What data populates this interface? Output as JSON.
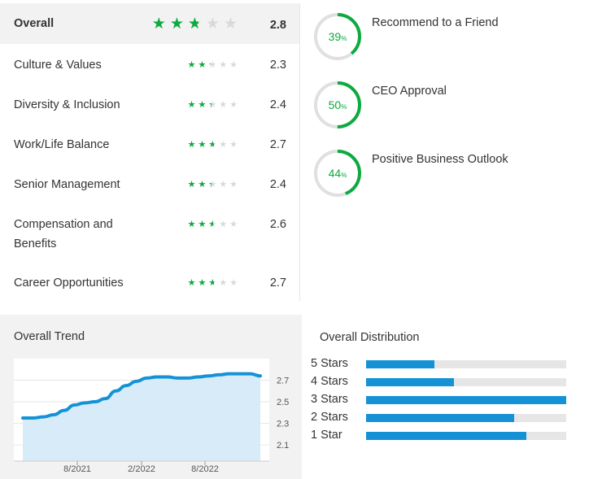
{
  "ratings": [
    {
      "label": "Overall",
      "value": "2.8",
      "stars": 2.8
    },
    {
      "label": "Culture & Values",
      "value": "2.3",
      "stars": 2.3
    },
    {
      "label": "Diversity & Inclusion",
      "value": "2.4",
      "stars": 2.4
    },
    {
      "label": "Work/Life Balance",
      "value": "2.7",
      "stars": 2.7
    },
    {
      "label": "Senior Management",
      "value": "2.4",
      "stars": 2.4
    },
    {
      "label": "Compensation and Benefits",
      "value": "2.6",
      "stars": 2.6
    },
    {
      "label": "Career Opportunities",
      "value": "2.7",
      "stars": 2.7
    }
  ],
  "gauges": [
    {
      "percent": "39",
      "unit": "%",
      "fraction": 0.39,
      "label": "Recommend to a Friend"
    },
    {
      "percent": "50",
      "unit": "%",
      "fraction": 0.5,
      "label": "CEO Approval"
    },
    {
      "percent": "44",
      "unit": "%",
      "fraction": 0.44,
      "label": "Positive Business Outlook"
    }
  ],
  "colors": {
    "star_fill": "#0caa41",
    "star_empty": "#d9d9d9",
    "gauge_accent": "#0caa41",
    "gauge_track": "#e0e0e0",
    "trend_line": "#1592d6",
    "trend_area": "#d7ecf8",
    "bar_fill": "#1592d6",
    "bar_track": "#e6e6e6"
  },
  "trend": {
    "title": "Overall Trend",
    "chart_data": {
      "type": "area",
      "x_ticks": [
        "8/2021",
        "2/2022",
        "8/2022"
      ],
      "y_ticks": [
        "2.7",
        "2.5",
        "2.3",
        "2.1"
      ],
      "ylim": [
        1.95,
        2.9
      ],
      "points": [
        2.35,
        2.35,
        2.36,
        2.38,
        2.42,
        2.47,
        2.49,
        2.5,
        2.53,
        2.6,
        2.65,
        2.69,
        2.72,
        2.73,
        2.73,
        2.72,
        2.72,
        2.73,
        2.74,
        2.75,
        2.76,
        2.76,
        2.76,
        2.74
      ]
    }
  },
  "distribution": {
    "title": "Overall Distribution",
    "chart_data": {
      "type": "bar",
      "categories": [
        "5 Stars",
        "4 Stars",
        "3 Stars",
        "2 Stars",
        "1 Star"
      ],
      "values": [
        0.34,
        0.44,
        1.0,
        0.74,
        0.8
      ]
    }
  }
}
